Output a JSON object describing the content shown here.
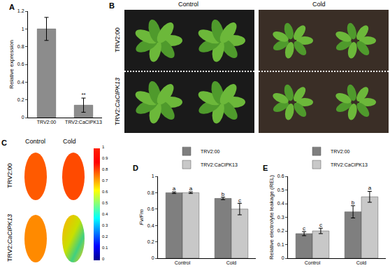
{
  "chart_data": [
    {
      "panel": "A",
      "type": "bar",
      "categories": [
        "TRV2:00",
        "TRV2:CaCIPK13"
      ],
      "values": [
        1.0,
        0.14
      ],
      "errors": [
        0.13,
        0.08
      ],
      "significance": [
        null,
        "**"
      ],
      "color": "#8c8c8c",
      "y_label": "Relative expression",
      "ylim": [
        0,
        1.2
      ],
      "yticks": [
        0,
        0.2,
        0.4,
        0.6,
        0.8,
        1,
        1.2
      ]
    },
    {
      "panel": "D",
      "type": "bar",
      "categories": [
        "Control",
        "Cold"
      ],
      "series": [
        {
          "name": "TRV2:00",
          "color": "#7f7f7f",
          "values": [
            0.8,
            0.73
          ],
          "errors": [
            0.01,
            0.015
          ],
          "letters": [
            "a",
            "b"
          ]
        },
        {
          "name": "TRV2:CaCIPK13",
          "color": "#c8c8c8",
          "values": [
            0.8,
            0.6
          ],
          "errors": [
            0.01,
            0.07
          ],
          "letters": [
            "a",
            "c"
          ]
        }
      ],
      "y_label": "Fv/Fm",
      "ylim": [
        0,
        1
      ],
      "yticks": [
        0,
        0.2,
        0.4,
        0.6,
        0.8,
        1
      ],
      "legend": "top"
    },
    {
      "panel": "E",
      "type": "bar",
      "categories": [
        "Control",
        "Cold"
      ],
      "series": [
        {
          "name": "TRV2:00",
          "color": "#7f7f7f",
          "values": [
            0.18,
            0.34
          ],
          "errors": [
            0.015,
            0.045
          ],
          "letters": [
            "c",
            "b"
          ]
        },
        {
          "name": "TRV2:CaCIPK13",
          "color": "#c8c8c8",
          "values": [
            0.2,
            0.45
          ],
          "errors": [
            0.02,
            0.04
          ],
          "letters": [
            "c",
            "a"
          ]
        }
      ],
      "y_label": "Relative electrolyte leakage (REL)",
      "ylim": [
        0,
        0.6
      ],
      "yticks": [
        0,
        0.1,
        0.2,
        0.3,
        0.4,
        0.5,
        0.6
      ],
      "legend": "top"
    }
  ],
  "photo_panels": [
    {
      "panel": "B",
      "columns": [
        "Control",
        "Cold"
      ],
      "rows": [
        "TRV2:00",
        "TRV2:CaCIPK13"
      ]
    },
    {
      "panel": "C",
      "columns": [
        "Control",
        "Cold"
      ],
      "rows": [
        "TRV2:00",
        "TRV2:CaCIPK13"
      ],
      "colorbar": {
        "range": [
          0,
          1
        ],
        "ticks": [
          0,
          0.1,
          0.2,
          0.3,
          0.4,
          0.5,
          0.6,
          0.7,
          0.8,
          0.9,
          1
        ]
      }
    }
  ]
}
